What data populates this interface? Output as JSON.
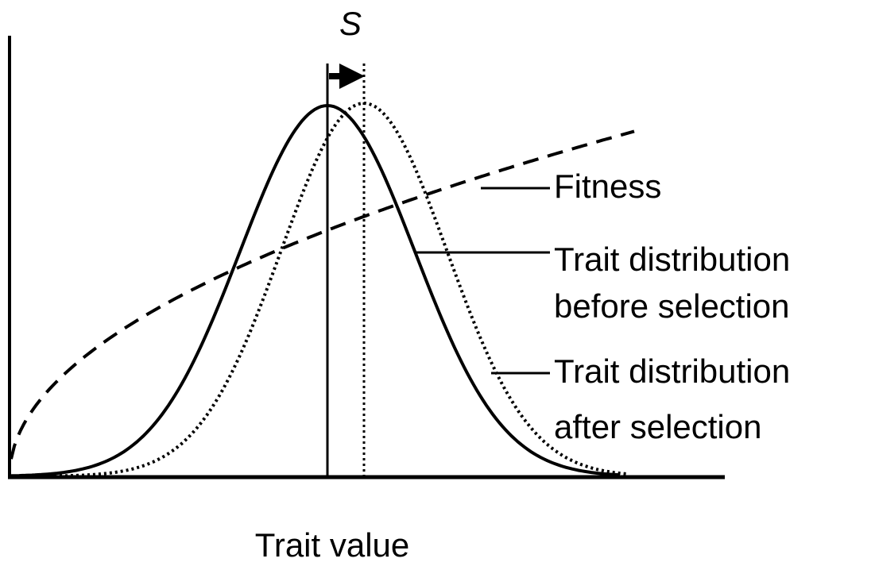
{
  "symbol": "S",
  "labels": [
    {
      "lines": [
        "Fitness"
      ]
    },
    {
      "lines": [
        "Trait distribution",
        "before selection"
      ]
    },
    {
      "lines": [
        "Trait distribution",
        "after selection"
      ]
    }
  ],
  "x_axis_label": "Trait value"
}
